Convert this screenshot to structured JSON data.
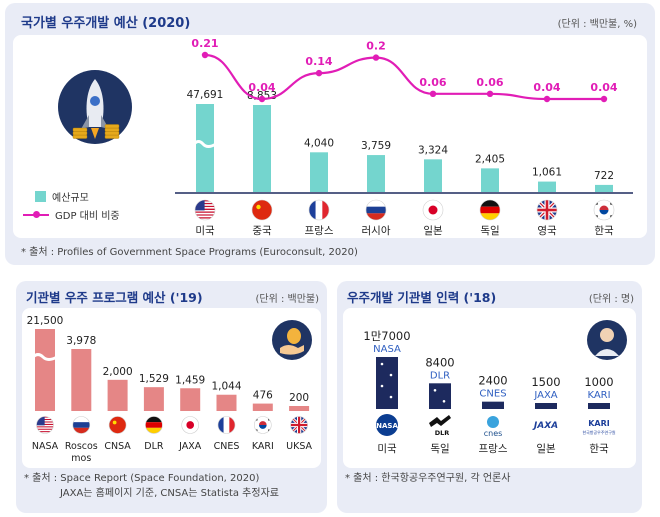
{
  "colors": {
    "title": "#1e3a8a",
    "teal_bar": "#74d5ce",
    "gdp_line": "#e11db6",
    "salmon_bar": "#e58686",
    "navy_bar": "#1d2a5e",
    "panel_bg": "#e9ecf6"
  },
  "icons": [
    "rocket-icon",
    "money-hand-icon",
    "astronaut-icon"
  ],
  "panel1": {
    "title": "국가별 우주개발 예산 (2020)",
    "unit": "(단위 : 백만불, %)",
    "legend": {
      "budget": "예산규모",
      "gdp": "GDP 대비 비중"
    },
    "source": "* 출처 : Profiles of Government Space Programs (Euroconsult, 2020)"
  },
  "panel2": {
    "title": "기관별 우주 프로그램 예산 ('19)",
    "unit": "(단위 : 백만불)",
    "source_line1": "* 출처 : Space Report (Space Foundation, 2020)",
    "source_line2": "JAXA는 홈페이지 기준, CNSA는 Statista 추정자료"
  },
  "panel3": {
    "title": "우주개발 기관별 인력 ('18)",
    "unit": "(단위 : 명)",
    "source": "* 출처 : 한국항공우주연구원, 각 언론사"
  },
  "chart_data": [
    {
      "type": "bar",
      "title": "국가별 우주개발 예산 (2020)",
      "categories": [
        "미국",
        "중국",
        "프랑스",
        "러시아",
        "일본",
        "독일",
        "영국",
        "한국"
      ],
      "series": [
        {
          "name": "예산규모",
          "values": [
            47691,
            8853,
            4040,
            3759,
            3324,
            2405,
            1061,
            722
          ],
          "labels": [
            "47,691",
            "8,853",
            "4,040",
            "3,759",
            "3,324",
            "2,405",
            "1,061",
            "722"
          ]
        },
        {
          "name": "GDP 대비 비중",
          "type": "line",
          "values": [
            0.21,
            0.04,
            0.14,
            0.2,
            0.06,
            0.06,
            0.04,
            0.04
          ],
          "labels": [
            "0.21",
            "0.04",
            "0.14",
            "0.2",
            "0.06",
            "0.06",
            "0.04",
            "0.04"
          ]
        }
      ],
      "flags": [
        "us",
        "cn",
        "fr",
        "ru",
        "jp",
        "de",
        "uk",
        "kr"
      ],
      "axis_break_on_first_bar": true,
      "legend_position": "left"
    },
    {
      "type": "bar",
      "title": "기관별 우주 프로그램 예산 ('19)",
      "categories": [
        "NASA",
        "Roscos\nmos",
        "CNSA",
        "DLR",
        "JAXA",
        "CNES",
        "KARI",
        "UKSA"
      ],
      "values": [
        21500,
        3978,
        2000,
        1529,
        1459,
        1044,
        476,
        200
      ],
      "labels": [
        "21,500",
        "3,978",
        "2,000",
        "1,529",
        "1,459",
        "1,044",
        "476",
        "200"
      ],
      "flags": [
        "us",
        "ru",
        "cn",
        "de",
        "jp",
        "fr",
        "kr",
        "uk"
      ],
      "axis_break_on_first_bar": true
    },
    {
      "type": "bar",
      "title": "우주개발 기관별 인력 ('18)",
      "categories": [
        "미국",
        "독일",
        "프랑스",
        "일본",
        "한국"
      ],
      "agencies": [
        "NASA",
        "DLR",
        "CNES",
        "JAXA",
        "KARI"
      ],
      "values": [
        17000,
        8400,
        2400,
        1500,
        1000
      ],
      "labels": [
        "1만7000",
        "8400",
        "2400",
        "1500",
        "1000"
      ],
      "agency_logos": [
        "NASA",
        "DLR",
        "cnes",
        "JAXA",
        "KARI"
      ],
      "agency_logo_subtitle": "한국항공우주연구원"
    }
  ]
}
